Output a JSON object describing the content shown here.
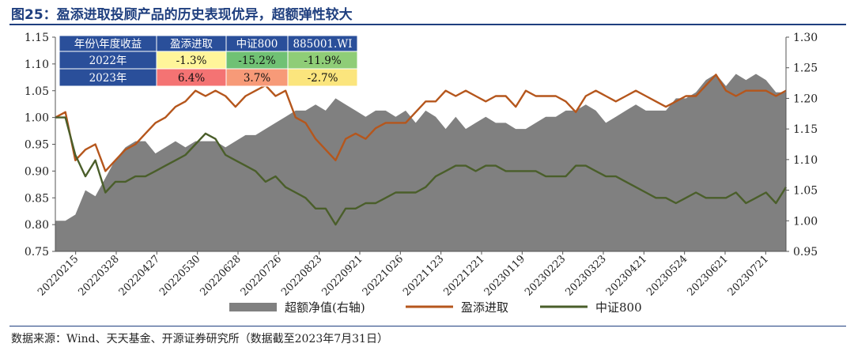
{
  "title": "图25：盈添进取投顾产品的历史表现优异，超额弹性较大",
  "source": "数据来源：Wind、天天基金、开源证券研究所（数据截至2023年7月31日）",
  "chart_data": {
    "type": "line",
    "left_axis": {
      "min": 0.75,
      "max": 1.15,
      "ticks": [
        "0.75",
        "0.80",
        "0.85",
        "0.90",
        "0.95",
        "1.00",
        "1.05",
        "1.10",
        "1.15"
      ]
    },
    "right_axis": {
      "min": 0.95,
      "max": 1.3,
      "ticks": [
        "0.95",
        "1.00",
        "1.05",
        "1.10",
        "1.15",
        "1.20",
        "1.25",
        "1.30"
      ]
    },
    "x_ticks": [
      "20220215",
      "20220328",
      "20220427",
      "20220530",
      "20220628",
      "20220726",
      "20220823",
      "20220921",
      "20221026",
      "20221123",
      "20221221",
      "20230119",
      "20230223",
      "20230323",
      "20230421",
      "20230524",
      "20230621",
      "20230721"
    ],
    "series": [
      {
        "name": "超额净值(右轴)",
        "axis": "right",
        "style": "area",
        "color": "#808080",
        "values": [
          1.0,
          1.0,
          1.01,
          1.05,
          1.04,
          1.07,
          1.1,
          1.12,
          1.13,
          1.13,
          1.11,
          1.12,
          1.13,
          1.12,
          1.13,
          1.13,
          1.13,
          1.12,
          1.13,
          1.14,
          1.14,
          1.15,
          1.16,
          1.17,
          1.18,
          1.18,
          1.19,
          1.18,
          1.2,
          1.19,
          1.18,
          1.17,
          1.18,
          1.18,
          1.17,
          1.18,
          1.16,
          1.18,
          1.17,
          1.15,
          1.17,
          1.15,
          1.16,
          1.17,
          1.16,
          1.16,
          1.15,
          1.15,
          1.16,
          1.17,
          1.17,
          1.18,
          1.18,
          1.19,
          1.18,
          1.16,
          1.17,
          1.18,
          1.19,
          1.18,
          1.18,
          1.18,
          1.2,
          1.2,
          1.21,
          1.23,
          1.24,
          1.22,
          1.24,
          1.23,
          1.24,
          1.23,
          1.21,
          1.21
        ]
      },
      {
        "name": "盈添进取",
        "axis": "left",
        "style": "line",
        "color": "#b5561c",
        "values": [
          1.0,
          1.01,
          0.92,
          0.94,
          0.95,
          0.9,
          0.92,
          0.94,
          0.95,
          0.97,
          0.99,
          1.0,
          1.02,
          1.03,
          1.05,
          1.04,
          1.05,
          1.04,
          1.02,
          1.04,
          1.05,
          1.06,
          1.04,
          1.05,
          1.0,
          0.99,
          0.96,
          0.94,
          0.92,
          0.96,
          0.97,
          0.96,
          0.98,
          0.99,
          0.99,
          0.99,
          1.01,
          1.03,
          1.03,
          1.05,
          1.04,
          1.05,
          1.04,
          1.03,
          1.04,
          1.04,
          1.02,
          1.05,
          1.04,
          1.04,
          1.04,
          1.03,
          1.01,
          1.04,
          1.05,
          1.04,
          1.03,
          1.04,
          1.05,
          1.04,
          1.03,
          1.02,
          1.03,
          1.04,
          1.04,
          1.06,
          1.08,
          1.05,
          1.04,
          1.05,
          1.05,
          1.05,
          1.04,
          1.05
        ]
      },
      {
        "name": "中证800",
        "axis": "left",
        "style": "line",
        "color": "#4a5e2a",
        "values": [
          1.0,
          1.0,
          0.93,
          0.89,
          0.92,
          0.86,
          0.88,
          0.88,
          0.89,
          0.89,
          0.9,
          0.91,
          0.92,
          0.93,
          0.95,
          0.97,
          0.96,
          0.93,
          0.92,
          0.91,
          0.9,
          0.88,
          0.89,
          0.87,
          0.86,
          0.85,
          0.83,
          0.83,
          0.8,
          0.83,
          0.83,
          0.84,
          0.84,
          0.85,
          0.86,
          0.86,
          0.86,
          0.87,
          0.89,
          0.9,
          0.91,
          0.91,
          0.9,
          0.91,
          0.91,
          0.9,
          0.9,
          0.9,
          0.9,
          0.89,
          0.89,
          0.89,
          0.91,
          0.91,
          0.9,
          0.89,
          0.89,
          0.88,
          0.87,
          0.86,
          0.85,
          0.85,
          0.84,
          0.85,
          0.86,
          0.85,
          0.85,
          0.85,
          0.86,
          0.84,
          0.85,
          0.86,
          0.84,
          0.87
        ]
      }
    ],
    "legend": {
      "placement": "bottom"
    },
    "table": {
      "header": [
        "年份\\年度收益",
        "盈添进取",
        "中证800",
        "885001.WI"
      ],
      "rows": [
        {
          "year": "2022年",
          "cells": [
            "-1.3%",
            "-15.2%",
            "-11.9%"
          ],
          "colors": [
            "#fff59a",
            "#70c174",
            "#8fcd77"
          ]
        },
        {
          "year": "2023年",
          "cells": [
            "6.4%",
            "3.7%",
            "-2.7%"
          ],
          "colors": [
            "#f47373",
            "#f79a78",
            "#fbe57d"
          ]
        }
      ],
      "header_color": "#2a4f9a"
    }
  }
}
